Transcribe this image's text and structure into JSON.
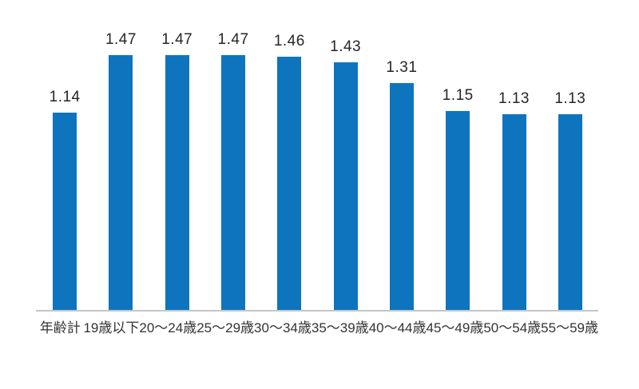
{
  "chart_data": {
    "type": "bar",
    "title": "",
    "xlabel": "",
    "ylabel": "",
    "categories": [
      "年齢計",
      "19歳以下",
      "20〜24歳",
      "25〜29歳",
      "30〜34歳",
      "35〜39歳",
      "40〜44歳",
      "45〜49歳",
      "50〜54歳",
      "55〜59歳"
    ],
    "values": [
      1.14,
      1.47,
      1.47,
      1.47,
      1.46,
      1.43,
      1.31,
      1.15,
      1.13,
      1.13
    ],
    "value_labels": [
      "1.14",
      "1.47",
      "1.47",
      "1.47",
      "1.46",
      "1.43",
      "1.31",
      "1.15",
      "1.13",
      "1.13"
    ],
    "ylim": [
      0,
      1.6
    ],
    "grid": false,
    "legend": "none",
    "colors": {
      "bar": "#0f74be",
      "axis_line": "#c6c6c6",
      "value_label_text": "#262626",
      "tick_label_text": "#333333",
      "background": "#ffffff"
    }
  }
}
